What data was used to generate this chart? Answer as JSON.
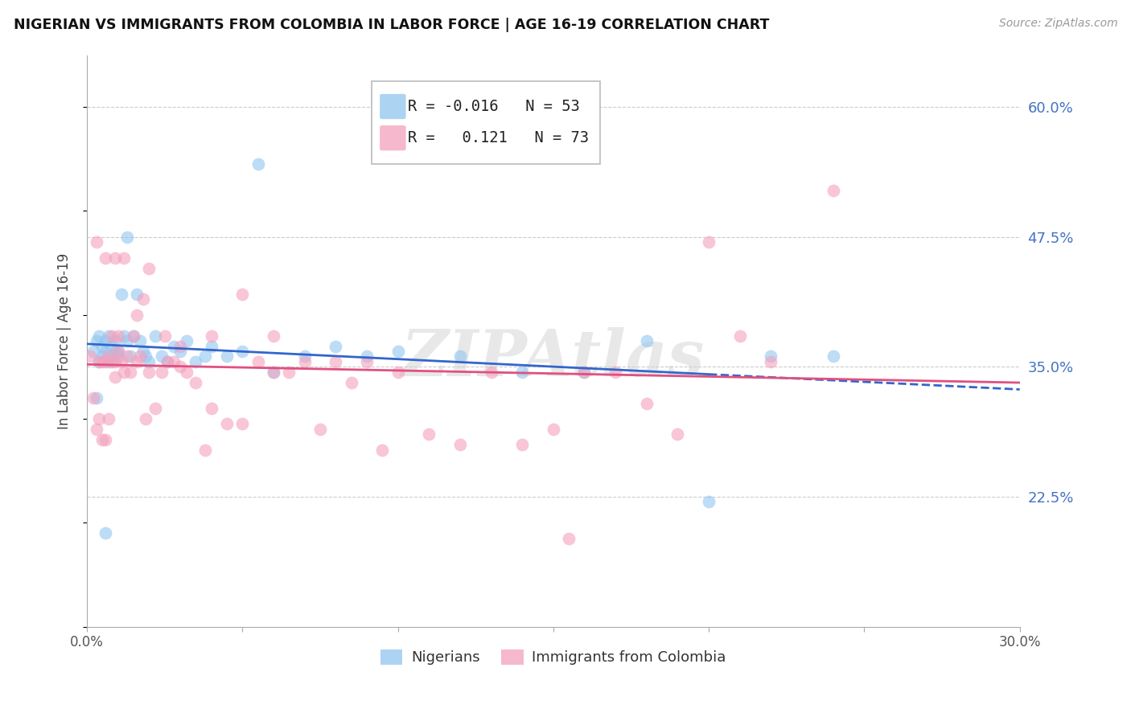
{
  "title": "NIGERIAN VS IMMIGRANTS FROM COLOMBIA IN LABOR FORCE | AGE 16-19 CORRELATION CHART",
  "source": "Source: ZipAtlas.com",
  "ylabel": "In Labor Force | Age 16-19",
  "x_min": 0.0,
  "x_max": 0.3,
  "y_min": 0.1,
  "y_max": 0.65,
  "x_ticks": [
    0.0,
    0.05,
    0.1,
    0.15,
    0.2,
    0.25,
    0.3
  ],
  "x_tick_labels": [
    "0.0%",
    "",
    "",
    "",
    "",
    "",
    "30.0%"
  ],
  "y_tick_labels_right": [
    "60.0%",
    "47.5%",
    "35.0%",
    "22.5%"
  ],
  "y_tick_values_right": [
    0.6,
    0.475,
    0.35,
    0.225
  ],
  "blue_R": "-0.016",
  "blue_N": "53",
  "pink_R": "0.121",
  "pink_N": "73",
  "blue_color": "#92C5F0",
  "pink_color": "#F4A0BC",
  "blue_line_color": "#3366CC",
  "pink_line_color": "#E05080",
  "legend_label_blue": "Nigerians",
  "legend_label_pink": "Immigrants from Colombia",
  "watermark": "ZIPAtlas",
  "blue_scatter_x": [
    0.002,
    0.003,
    0.004,
    0.004,
    0.005,
    0.005,
    0.006,
    0.006,
    0.007,
    0.007,
    0.008,
    0.008,
    0.009,
    0.009,
    0.01,
    0.01,
    0.011,
    0.012,
    0.013,
    0.014,
    0.015,
    0.016,
    0.017,
    0.018,
    0.019,
    0.02,
    0.022,
    0.024,
    0.026,
    0.028,
    0.03,
    0.032,
    0.035,
    0.038,
    0.04,
    0.045,
    0.05,
    0.055,
    0.06,
    0.07,
    0.08,
    0.09,
    0.1,
    0.12,
    0.14,
    0.16,
    0.18,
    0.2,
    0.22,
    0.24,
    0.003,
    0.006,
    0.013
  ],
  "blue_scatter_y": [
    0.365,
    0.375,
    0.38,
    0.355,
    0.36,
    0.37,
    0.365,
    0.375,
    0.38,
    0.355,
    0.37,
    0.36,
    0.365,
    0.375,
    0.365,
    0.36,
    0.42,
    0.38,
    0.375,
    0.36,
    0.38,
    0.42,
    0.375,
    0.365,
    0.36,
    0.355,
    0.38,
    0.36,
    0.355,
    0.37,
    0.365,
    0.375,
    0.355,
    0.36,
    0.37,
    0.36,
    0.365,
    0.545,
    0.345,
    0.36,
    0.37,
    0.36,
    0.365,
    0.36,
    0.345,
    0.345,
    0.375,
    0.22,
    0.36,
    0.36,
    0.32,
    0.19,
    0.475
  ],
  "pink_scatter_x": [
    0.001,
    0.002,
    0.003,
    0.004,
    0.004,
    0.005,
    0.005,
    0.006,
    0.006,
    0.007,
    0.007,
    0.008,
    0.008,
    0.009,
    0.009,
    0.01,
    0.01,
    0.011,
    0.012,
    0.013,
    0.014,
    0.015,
    0.016,
    0.017,
    0.018,
    0.019,
    0.02,
    0.022,
    0.024,
    0.026,
    0.028,
    0.03,
    0.032,
    0.035,
    0.038,
    0.04,
    0.045,
    0.05,
    0.055,
    0.06,
    0.065,
    0.07,
    0.075,
    0.08,
    0.085,
    0.09,
    0.095,
    0.1,
    0.11,
    0.12,
    0.13,
    0.14,
    0.15,
    0.16,
    0.17,
    0.18,
    0.19,
    0.2,
    0.21,
    0.22,
    0.003,
    0.006,
    0.009,
    0.012,
    0.016,
    0.02,
    0.025,
    0.03,
    0.04,
    0.05,
    0.06,
    0.24,
    0.155
  ],
  "pink_scatter_y": [
    0.36,
    0.32,
    0.29,
    0.3,
    0.355,
    0.28,
    0.355,
    0.28,
    0.355,
    0.3,
    0.36,
    0.355,
    0.38,
    0.34,
    0.355,
    0.365,
    0.38,
    0.355,
    0.345,
    0.36,
    0.345,
    0.38,
    0.355,
    0.36,
    0.415,
    0.3,
    0.345,
    0.31,
    0.345,
    0.355,
    0.355,
    0.35,
    0.345,
    0.335,
    0.27,
    0.31,
    0.295,
    0.295,
    0.355,
    0.345,
    0.345,
    0.355,
    0.29,
    0.355,
    0.335,
    0.355,
    0.27,
    0.345,
    0.285,
    0.275,
    0.345,
    0.275,
    0.29,
    0.345,
    0.345,
    0.315,
    0.285,
    0.47,
    0.38,
    0.355,
    0.47,
    0.455,
    0.455,
    0.455,
    0.4,
    0.445,
    0.38,
    0.37,
    0.38,
    0.42,
    0.38,
    0.52,
    0.185
  ]
}
